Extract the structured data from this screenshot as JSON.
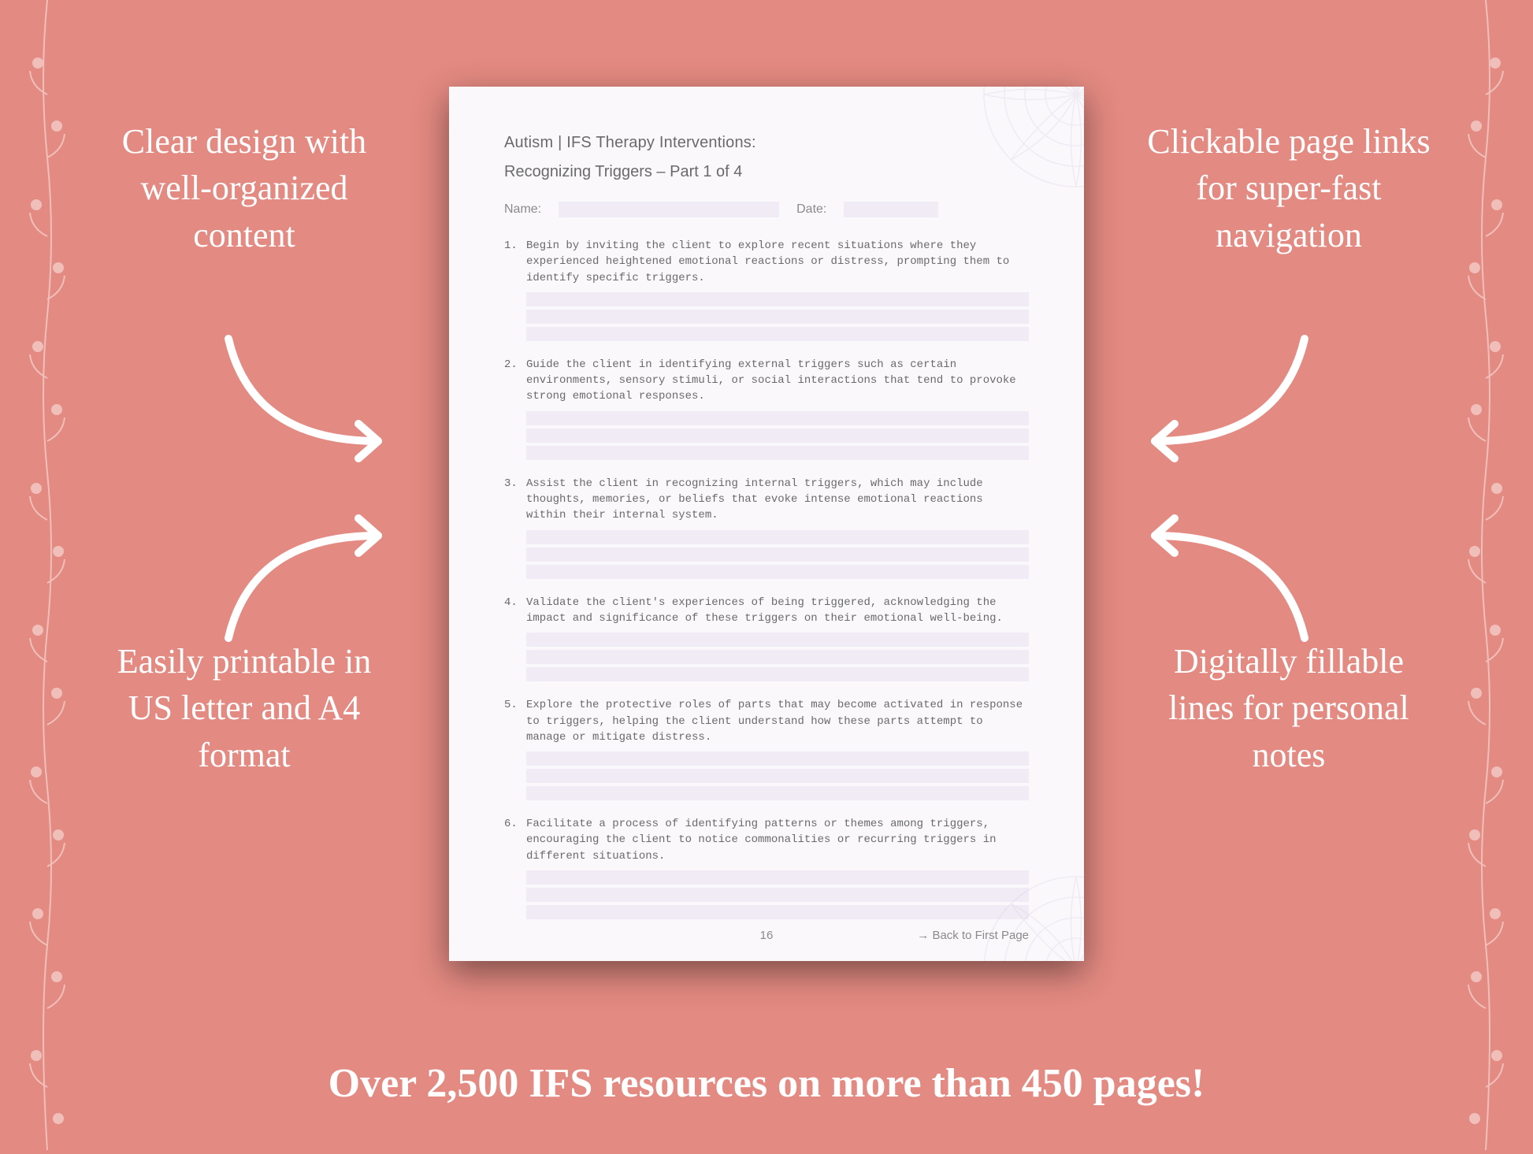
{
  "colors": {
    "background": "#e38a82",
    "page_bg": "#fbf8fc",
    "field_bg": "#f1ebf6",
    "text_white": "#ffffff",
    "text_gray": "#6a6a6a",
    "text_light_gray": "#8a8a8a",
    "vine_stroke": "#ffffff",
    "mandala_stroke": "#c9c0d6"
  },
  "typography": {
    "callout_fontsize": 44,
    "banner_fontsize": 52,
    "page_heading_fontsize": 20,
    "item_fontsize": 14,
    "footer_fontsize": 15
  },
  "callouts": {
    "top_left": "Clear design with well-organized content",
    "top_right": "Clickable page links for super-fast navigation",
    "bottom_left": "Easily printable in US letter and A4 format",
    "bottom_right": "Digitally fillable lines for personal notes"
  },
  "banner": "Over 2,500 IFS resources on more than 450 pages!",
  "page": {
    "heading1": "Autism | IFS Therapy Interventions:",
    "heading2": "Recognizing Triggers – Part 1 of 4",
    "name_label": "Name:",
    "date_label": "Date:",
    "page_number": "16",
    "back_link": "→ Back to First Page",
    "fill_lines_per_item": 3,
    "items": [
      {
        "num": "1.",
        "text": "Begin by inviting the client to explore recent situations where they experienced heightened emotional reactions or distress, prompting them to identify specific triggers."
      },
      {
        "num": "2.",
        "text": "Guide the client in identifying external triggers such as certain environments, sensory stimuli, or social interactions that tend to provoke strong emotional responses."
      },
      {
        "num": "3.",
        "text": "Assist the client in recognizing internal triggers, which may include thoughts, memories, or beliefs that evoke intense emotional reactions within their internal system."
      },
      {
        "num": "4.",
        "text": "Validate the client's experiences of being triggered, acknowledging the impact and significance of these triggers on their emotional well-being."
      },
      {
        "num": "5.",
        "text": "Explore the protective roles of parts that may become activated in response to triggers, helping the client understand how these parts attempt to manage or mitigate distress."
      },
      {
        "num": "6.",
        "text": "Facilitate a process of identifying patterns or themes among triggers, encouraging the client to notice commonalities or recurring triggers in different situations."
      }
    ]
  }
}
